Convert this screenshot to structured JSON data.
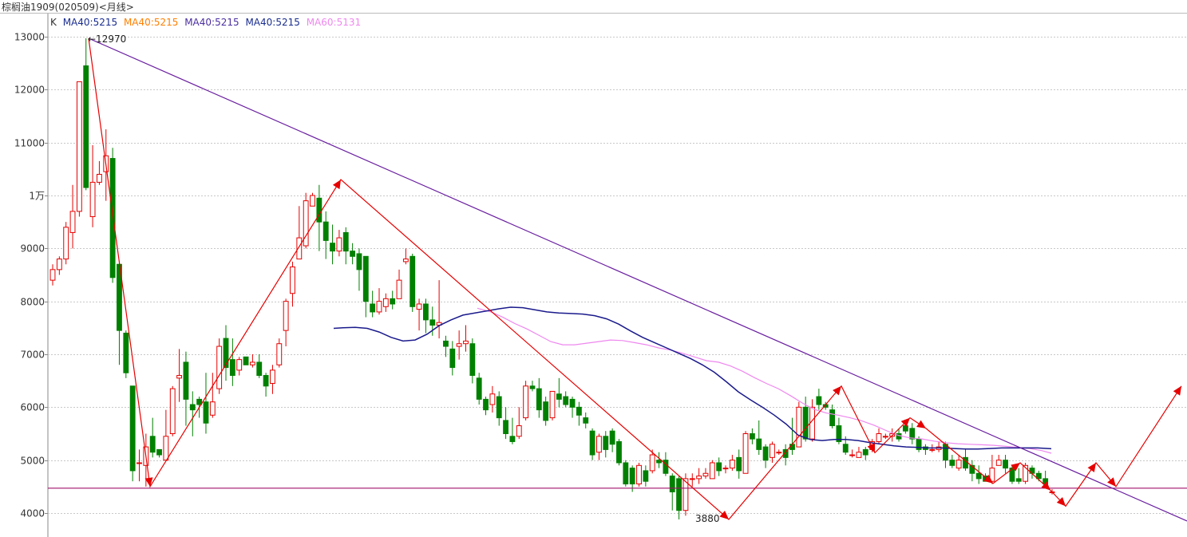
{
  "window": {
    "title": "棕榈油1909(020509)<月线>"
  },
  "legend": {
    "k_label": "K",
    "items": [
      {
        "text": "MA40:5215",
        "color": "#1a2d8f"
      },
      {
        "text": "MA40:5215",
        "color": "#ff7f00"
      },
      {
        "text": "MA40:5215",
        "color": "#4b2fa0"
      },
      {
        "text": "MA40:5215",
        "color": "#1a2d8f"
      },
      {
        "text": "MA60:5131",
        "color": "#ee88ee"
      }
    ]
  },
  "colors": {
    "up": "#e60000",
    "down": "#008000",
    "ma_blue": "#1a1a8c",
    "ma_pink": "#ee88ee",
    "trend_purple": "#6a1fa0",
    "support_line": "#a0106a",
    "zigzag": "#e60000",
    "grid": "#c8c8c8"
  },
  "chart_data": {
    "type": "candlestick",
    "title": "棕榈油1909(020509)<月线>",
    "ylim": [
      3830,
      13450
    ],
    "y_ticks": [
      {
        "value": 13000,
        "label": "13000"
      },
      {
        "value": 12000,
        "label": "12000"
      },
      {
        "value": 11000,
        "label": "11000"
      },
      {
        "value": 10000,
        "label": "1万"
      },
      {
        "value": 9000,
        "label": "9000"
      },
      {
        "value": 8000,
        "label": "8000"
      },
      {
        "value": 7000,
        "label": "7000"
      },
      {
        "value": 6000,
        "label": "6000"
      },
      {
        "value": 5000,
        "label": "5000"
      },
      {
        "value": 4000,
        "label": "4000"
      }
    ],
    "grid": true,
    "candles": [
      [
        8400,
        8600,
        8300,
        8700
      ],
      [
        8600,
        8800,
        8500,
        8850
      ],
      [
        8800,
        9400,
        8700,
        9500
      ],
      [
        9300,
        9700,
        9000,
        10200
      ],
      [
        9700,
        12150,
        9600,
        12150
      ],
      [
        12450,
        10150,
        10100,
        12970
      ],
      [
        9600,
        10250,
        9400,
        10950
      ],
      [
        10250,
        10400,
        10200,
        10650
      ],
      [
        10450,
        10750,
        9900,
        11250
      ],
      [
        10700,
        8450,
        8350,
        10900
      ],
      [
        8700,
        7450,
        6800,
        8750
      ],
      [
        7400,
        6650,
        6550,
        7450
      ],
      [
        6400,
        4800,
        4600,
        6400
      ],
      [
        4950,
        4950,
        4600,
        5200
      ],
      [
        4900,
        5250,
        4500,
        5500
      ],
      [
        5450,
        5150,
        5050,
        5800
      ],
      [
        5200,
        5100,
        5050,
        5200
      ],
      [
        5000,
        5450,
        5000,
        5950
      ],
      [
        5500,
        6350,
        5450,
        6400
      ],
      [
        6550,
        6600,
        6100,
        7100
      ],
      [
        6850,
        6150,
        5650,
        7050
      ],
      [
        6050,
        5950,
        5450,
        6300
      ],
      [
        6150,
        6050,
        5800,
        6200
      ],
      [
        6100,
        5700,
        5500,
        6650
      ],
      [
        5850,
        6100,
        5800,
        6650
      ],
      [
        6350,
        7150,
        6250,
        7300
      ],
      [
        7300,
        6750,
        6500,
        7550
      ],
      [
        6900,
        6600,
        6400,
        7300
      ],
      [
        6700,
        6900,
        6600,
        6950
      ],
      [
        6950,
        6800,
        6800,
        6950
      ],
      [
        6800,
        6850,
        6750,
        7000
      ],
      [
        6850,
        6600,
        6550,
        7000
      ],
      [
        6600,
        6400,
        6200,
        6650
      ],
      [
        6450,
        6700,
        6250,
        6800
      ],
      [
        6800,
        7200,
        6750,
        7300
      ],
      [
        7450,
        8000,
        7150,
        8050
      ],
      [
        8150,
        8650,
        7900,
        8750
      ],
      [
        8800,
        9200,
        8800,
        9800
      ],
      [
        9050,
        9900,
        9000,
        10050
      ],
      [
        9800,
        10000,
        9800,
        10050
      ],
      [
        9950,
        9500,
        8950,
        10200
      ],
      [
        9500,
        9150,
        8800,
        9700
      ],
      [
        9100,
        8950,
        8700,
        9450
      ],
      [
        8950,
        9200,
        8850,
        9350
      ],
      [
        9300,
        8950,
        8700,
        9400
      ],
      [
        8950,
        8850,
        8700,
        9100
      ],
      [
        8900,
        8600,
        8200,
        9000
      ],
      [
        8850,
        8000,
        7700,
        8850
      ],
      [
        7950,
        7800,
        7700,
        8200
      ],
      [
        7800,
        8000,
        7750,
        8250
      ],
      [
        7900,
        8050,
        7800,
        8150
      ],
      [
        8050,
        7950,
        7850,
        8200
      ],
      [
        8050,
        8400,
        8050,
        8600
      ],
      [
        8750,
        8800,
        8700,
        9000
      ],
      [
        8850,
        7900,
        7800,
        8900
      ],
      [
        7850,
        7950,
        7450,
        8050
      ],
      [
        7950,
        7650,
        7400,
        8050
      ],
      [
        7650,
        7550,
        7350,
        7900
      ],
      [
        7550,
        7600,
        7300,
        8400
      ],
      [
        7250,
        7150,
        6950,
        7350
      ],
      [
        7100,
        6750,
        6600,
        7250
      ],
      [
        7150,
        7200,
        6900,
        7450
      ],
      [
        7200,
        7250,
        7050,
        7550
      ],
      [
        7200,
        6600,
        6450,
        7300
      ],
      [
        6550,
        6150,
        6050,
        6650
      ],
      [
        6150,
        5950,
        5850,
        6200
      ],
      [
        6050,
        6250,
        5900,
        6400
      ],
      [
        6200,
        5800,
        5650,
        6300
      ],
      [
        5750,
        5500,
        5400,
        6000
      ],
      [
        5450,
        5350,
        5300,
        5800
      ],
      [
        5450,
        5650,
        5400,
        6000
      ],
      [
        5800,
        6400,
        5750,
        6500
      ],
      [
        6400,
        6350,
        6300,
        6500
      ],
      [
        6350,
        5950,
        5800,
        6550
      ],
      [
        6100,
        5750,
        5650,
        6200
      ],
      [
        5800,
        6300,
        5750,
        6300
      ],
      [
        6250,
        6150,
        6000,
        6550
      ],
      [
        6200,
        6050,
        6000,
        6300
      ],
      [
        6150,
        6000,
        5800,
        6200
      ],
      [
        6000,
        5850,
        5650,
        6100
      ],
      [
        5800,
        5700,
        5600,
        5900
      ],
      [
        5550,
        5100,
        5000,
        5600
      ],
      [
        5150,
        5450,
        5000,
        5500
      ],
      [
        5450,
        5200,
        5050,
        5550
      ],
      [
        5550,
        5300,
        5150,
        5600
      ],
      [
        5350,
        4950,
        4900,
        5400
      ],
      [
        4950,
        4550,
        4500,
        5000
      ],
      [
        4850,
        4550,
        4400,
        4900
      ],
      [
        4550,
        4900,
        4500,
        4950
      ],
      [
        4800,
        4600,
        4500,
        4900
      ],
      [
        4800,
        5100,
        4750,
        5200
      ],
      [
        5000,
        4950,
        4850,
        5150
      ],
      [
        5000,
        4750,
        4700,
        5150
      ],
      [
        4700,
        4400,
        4050,
        4750
      ],
      [
        4650,
        4050,
        3880,
        4700
      ],
      [
        4050,
        4650,
        3950,
        4750
      ],
      [
        4650,
        4650,
        4500,
        4750
      ],
      [
        4650,
        4700,
        4550,
        4850
      ],
      [
        4700,
        4750,
        4650,
        4850
      ],
      [
        4650,
        4950,
        4650,
        5000
      ],
      [
        4950,
        4800,
        4700,
        5050
      ],
      [
        4850,
        4850,
        4750,
        4900
      ],
      [
        4850,
        5000,
        4800,
        5100
      ],
      [
        5050,
        4800,
        4650,
        5200
      ],
      [
        4750,
        5500,
        4750,
        5550
      ],
      [
        5500,
        5400,
        5300,
        5600
      ],
      [
        5400,
        5200,
        5100,
        5750
      ],
      [
        5250,
        5000,
        4850,
        5300
      ],
      [
        5050,
        5300,
        4950,
        5350
      ],
      [
        5150,
        5150,
        5100,
        5200
      ],
      [
        5200,
        5050,
        4900,
        5300
      ],
      [
        5300,
        5200,
        5100,
        5800
      ],
      [
        5250,
        6000,
        5250,
        6100
      ],
      [
        6000,
        5400,
        5350,
        6200
      ],
      [
        5400,
        6000,
        5350,
        6150
      ],
      [
        6200,
        6050,
        5950,
        6350
      ],
      [
        6050,
        6000,
        5950,
        6100
      ],
      [
        5950,
        5650,
        5600,
        6050
      ],
      [
        5650,
        5350,
        5300,
        5800
      ],
      [
        5300,
        5150,
        5100,
        5450
      ],
      [
        5100,
        5100,
        5050,
        5200
      ],
      [
        5050,
        5150,
        5050,
        5250
      ],
      [
        5200,
        5100,
        5000,
        5250
      ],
      [
        5200,
        5350,
        5150,
        5400
      ],
      [
        5350,
        5500,
        5300,
        5600
      ],
      [
        5450,
        5450,
        5400,
        5500
      ],
      [
        5450,
        5500,
        5350,
        5600
      ],
      [
        5500,
        5400,
        5350,
        5600
      ],
      [
        5650,
        5550,
        5500,
        5750
      ],
      [
        5600,
        5400,
        5300,
        5700
      ],
      [
        5400,
        5200,
        5150,
        5450
      ],
      [
        5250,
        5200,
        5100,
        5300
      ],
      [
        5200,
        5200,
        5150,
        5300
      ],
      [
        5200,
        5250,
        5150,
        5350
      ],
      [
        5300,
        5000,
        4850,
        5350
      ],
      [
        5000,
        4900,
        4850,
        5100
      ],
      [
        4850,
        5000,
        4800,
        5100
      ],
      [
        5050,
        4850,
        4800,
        5200
      ],
      [
        4900,
        4750,
        4600,
        5000
      ],
      [
        4750,
        4650,
        4550,
        4900
      ],
      [
        4700,
        4600,
        4600,
        4750
      ],
      [
        4600,
        4850,
        4550,
        5100
      ],
      [
        4900,
        5000,
        4900,
        5100
      ],
      [
        5000,
        4850,
        4750,
        5100
      ],
      [
        4850,
        4600,
        4550,
        4900
      ],
      [
        4650,
        4600,
        4550,
        4850
      ],
      [
        4600,
        4900,
        4550,
        4950
      ],
      [
        4850,
        4750,
        4650,
        4900
      ],
      [
        4750,
        4650,
        4600,
        4800
      ],
      [
        4650,
        4550,
        4500,
        4800
      ],
      [
        4400,
        4400,
        4350,
        4450
      ]
    ],
    "ma_blue": [
      [
        418,
        7490
      ],
      [
        430,
        7500
      ],
      [
        445,
        7510
      ],
      [
        460,
        7490
      ],
      [
        475,
        7420
      ],
      [
        490,
        7320
      ],
      [
        505,
        7250
      ],
      [
        520,
        7270
      ],
      [
        535,
        7380
      ],
      [
        550,
        7540
      ],
      [
        565,
        7650
      ],
      [
        580,
        7740
      ],
      [
        595,
        7780
      ],
      [
        610,
        7820
      ],
      [
        625,
        7860
      ],
      [
        640,
        7890
      ],
      [
        655,
        7880
      ],
      [
        670,
        7840
      ],
      [
        685,
        7800
      ],
      [
        700,
        7780
      ],
      [
        715,
        7770
      ],
      [
        730,
        7760
      ],
      [
        745,
        7730
      ],
      [
        760,
        7670
      ],
      [
        775,
        7570
      ],
      [
        790,
        7440
      ],
      [
        805,
        7320
      ],
      [
        820,
        7220
      ],
      [
        835,
        7120
      ],
      [
        850,
        7020
      ],
      [
        865,
        6920
      ],
      [
        880,
        6800
      ],
      [
        895,
        6660
      ],
      [
        910,
        6480
      ],
      [
        925,
        6290
      ],
      [
        940,
        6140
      ],
      [
        955,
        6000
      ],
      [
        970,
        5850
      ],
      [
        985,
        5680
      ],
      [
        1000,
        5470
      ],
      [
        1015,
        5390
      ],
      [
        1030,
        5370
      ],
      [
        1045,
        5390
      ],
      [
        1060,
        5390
      ],
      [
        1075,
        5370
      ],
      [
        1090,
        5330
      ],
      [
        1105,
        5300
      ],
      [
        1120,
        5270
      ],
      [
        1135,
        5250
      ],
      [
        1150,
        5240
      ],
      [
        1165,
        5230
      ],
      [
        1180,
        5230
      ],
      [
        1195,
        5220
      ],
      [
        1210,
        5210
      ],
      [
        1225,
        5210
      ],
      [
        1240,
        5220
      ],
      [
        1255,
        5230
      ],
      [
        1270,
        5230
      ],
      [
        1285,
        5230
      ],
      [
        1300,
        5230
      ],
      [
        1317,
        5215
      ]
    ],
    "ma_pink": [
      [
        598,
        7870
      ],
      [
        615,
        7800
      ],
      [
        630,
        7700
      ],
      [
        645,
        7580
      ],
      [
        660,
        7480
      ],
      [
        675,
        7360
      ],
      [
        690,
        7240
      ],
      [
        705,
        7180
      ],
      [
        720,
        7180
      ],
      [
        735,
        7210
      ],
      [
        750,
        7240
      ],
      [
        765,
        7270
      ],
      [
        780,
        7260
      ],
      [
        795,
        7220
      ],
      [
        810,
        7180
      ],
      [
        825,
        7120
      ],
      [
        840,
        7080
      ],
      [
        855,
        7020
      ],
      [
        870,
        6950
      ],
      [
        885,
        6880
      ],
      [
        900,
        6850
      ],
      [
        915,
        6780
      ],
      [
        930,
        6680
      ],
      [
        945,
        6560
      ],
      [
        960,
        6450
      ],
      [
        975,
        6350
      ],
      [
        990,
        6220
      ],
      [
        1005,
        6080
      ],
      [
        1020,
        5960
      ],
      [
        1035,
        5890
      ],
      [
        1050,
        5850
      ],
      [
        1065,
        5800
      ],
      [
        1080,
        5740
      ],
      [
        1095,
        5660
      ],
      [
        1110,
        5560
      ],
      [
        1125,
        5470
      ],
      [
        1140,
        5420
      ],
      [
        1155,
        5400
      ],
      [
        1170,
        5360
      ],
      [
        1185,
        5330
      ],
      [
        1200,
        5310
      ],
      [
        1215,
        5300
      ],
      [
        1230,
        5290
      ],
      [
        1245,
        5280
      ],
      [
        1260,
        5260
      ],
      [
        1275,
        5240
      ],
      [
        1290,
        5220
      ],
      [
        1305,
        5180
      ],
      [
        1317,
        5131
      ]
    ],
    "zigzag": [
      [
        111,
        12970
      ],
      [
        188,
        4500
      ],
      [
        427,
        10300
      ],
      [
        913,
        3880
      ],
      [
        1054,
        6400
      ],
      [
        1096,
        5140
      ],
      [
        1140,
        5800
      ],
      [
        1160,
        5600
      ],
      [
        1244,
        4560
      ],
      [
        1278,
        4950
      ],
      [
        1316,
        4430
      ],
      [
        1335,
        4130
      ],
      [
        1373,
        4950
      ],
      [
        1398,
        4500
      ],
      [
        1480,
        6400
      ]
    ],
    "trend_line": [
      [
        111,
        12970
      ],
      [
        1487,
        3850
      ]
    ],
    "support_line": {
      "value": 4470
    },
    "annotations": [
      {
        "text": "←12970",
        "value": 12970
      },
      {
        "text": "3880",
        "value": 3880
      }
    ]
  }
}
